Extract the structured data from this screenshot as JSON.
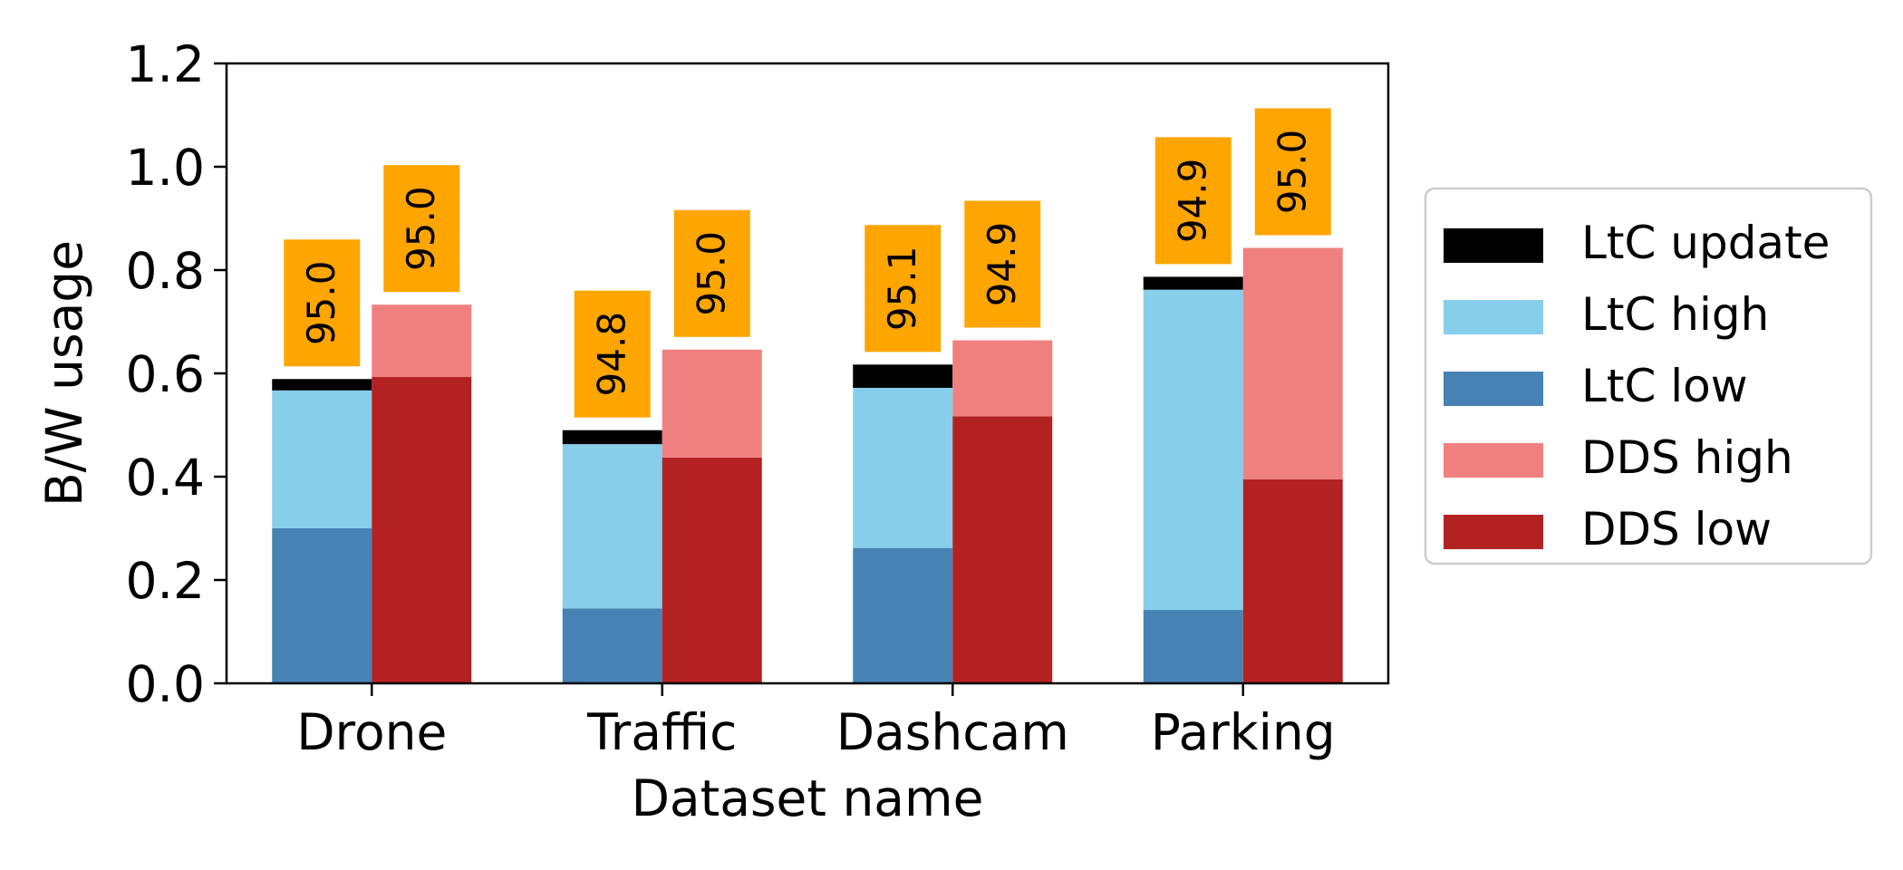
{
  "chart_data": {
    "type": "bar",
    "stacked": true,
    "grouped": true,
    "xlabel": "Dataset name",
    "ylabel": "B/W usage",
    "ylim": [
      0,
      1.2
    ],
    "yticks": [
      "0.0",
      "0.2",
      "0.4",
      "0.6",
      "0.8",
      "1.0",
      "1.2"
    ],
    "grid": false,
    "legend_position": "right",
    "categories": [
      "Drone",
      "Traffic",
      "Dashcam",
      "Parking"
    ],
    "groups": [
      {
        "name": "LtC",
        "stack": [
          {
            "series": "LtC low",
            "values": [
              0.3,
              0.145,
              0.262,
              0.142
            ]
          },
          {
            "series": "LtC high",
            "values": [
              0.267,
              0.318,
              0.31,
              0.62
            ]
          },
          {
            "series": "LtC update",
            "values": [
              0.022,
              0.027,
              0.045,
              0.025
            ]
          }
        ],
        "annotations": [
          "95.0",
          "94.8",
          "95.1",
          "94.9"
        ]
      },
      {
        "name": "DDS",
        "stack": [
          {
            "series": "DDS low",
            "values": [
              0.593,
              0.437,
              0.517,
              0.395
            ]
          },
          {
            "series": "DDS high",
            "values": [
              0.14,
              0.209,
              0.147,
              0.448
            ]
          }
        ],
        "annotations": [
          "95.0",
          "95.0",
          "94.9",
          "95.0"
        ]
      }
    ],
    "legend": [
      {
        "name": "LtC update",
        "color": "#000000"
      },
      {
        "name": "LtC high",
        "color": "#87ceeb"
      },
      {
        "name": "LtC low",
        "color": "#4682b4"
      },
      {
        "name": "DDS high",
        "color": "#f08080"
      },
      {
        "name": "DDS low",
        "color": "#b22222"
      }
    ],
    "annotation_box_color": "#ffa500"
  }
}
